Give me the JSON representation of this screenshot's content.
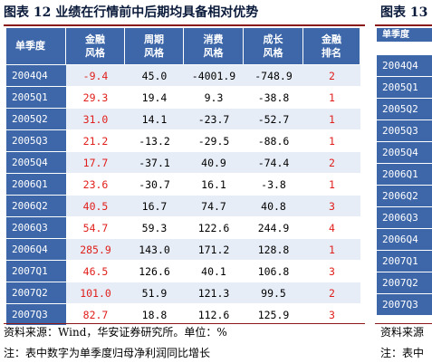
{
  "title_main": "图表 12 业绩在行情前中后期均具备相对优势",
  "title_right": "图表 13",
  "headers": [
    "单季度",
    "金融\n风格",
    "周期\n风格",
    "消费\n风格",
    "成长\n风格",
    "金融\n排名"
  ],
  "rows": [
    {
      "q": "2004Q4",
      "fin": "-9.4",
      "cyc": "45.0",
      "con": "-4001.9",
      "gro": "-748.9",
      "rank": "2"
    },
    {
      "q": "2005Q1",
      "fin": "29.3",
      "cyc": "19.4",
      "con": "9.3",
      "gro": "-38.8",
      "rank": "1"
    },
    {
      "q": "2005Q2",
      "fin": "31.0",
      "cyc": "14.1",
      "con": "-23.7",
      "gro": "-52.7",
      "rank": "1"
    },
    {
      "q": "2005Q3",
      "fin": "21.2",
      "cyc": "-13.2",
      "con": "-29.5",
      "gro": "-88.6",
      "rank": "1"
    },
    {
      "q": "2005Q4",
      "fin": "17.7",
      "cyc": "-37.1",
      "con": "40.9",
      "gro": "-74.4",
      "rank": "2"
    },
    {
      "q": "2006Q1",
      "fin": "23.6",
      "cyc": "-30.7",
      "con": "16.1",
      "gro": "-3.8",
      "rank": "1"
    },
    {
      "q": "2006Q2",
      "fin": "40.5",
      "cyc": "16.7",
      "con": "74.7",
      "gro": "40.8",
      "rank": "3"
    },
    {
      "q": "2006Q3",
      "fin": "54.7",
      "cyc": "59.3",
      "con": "122.6",
      "gro": "244.9",
      "rank": "4"
    },
    {
      "q": "2006Q4",
      "fin": "285.9",
      "cyc": "143.0",
      "con": "171.2",
      "gro": "128.8",
      "rank": "1"
    },
    {
      "q": "2007Q1",
      "fin": "46.5",
      "cyc": "126.6",
      "con": "40.1",
      "gro": "106.8",
      "rank": "3"
    },
    {
      "q": "2007Q2",
      "fin": "101.0",
      "cyc": "51.9",
      "con": "121.3",
      "gro": "99.5",
      "rank": "2"
    },
    {
      "q": "2007Q3",
      "fin": "82.7",
      "cyc": "18.8",
      "con": "112.6",
      "gro": "125.9",
      "rank": "3"
    }
  ],
  "right_table": {
    "header": "单季度",
    "quarters": [
      "2004Q4",
      "2005Q1",
      "2005Q2",
      "2005Q3",
      "2005Q4",
      "2006Q1",
      "2006Q2",
      "2006Q3",
      "2006Q4",
      "2007Q1",
      "2007Q2",
      "2007Q3"
    ]
  },
  "source": "资料来源：Wind，华安证券研究所。单位：%",
  "note": "注：表中数字为单季度归母净利润同比增长",
  "source_right": "资料来源",
  "note_right": "注：表中",
  "colors": {
    "header_bg": "#3d67a9",
    "row_alt": "#e7edf6",
    "red": "#e0201c",
    "rule": "#8a1a1a"
  }
}
